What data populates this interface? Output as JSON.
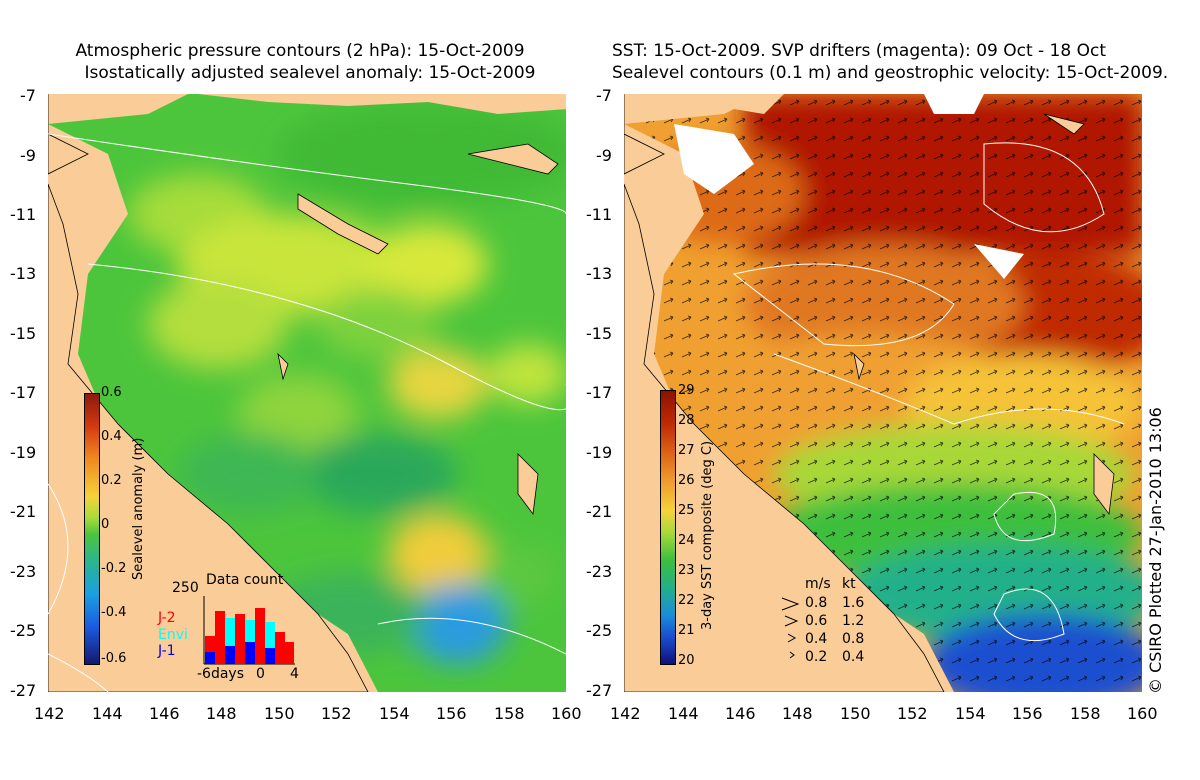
{
  "left_panel": {
    "title_line1": "Atmospheric pressure contours (2 hPa): 15-Oct-2009",
    "title_line2": "Isostatically adjusted sealevel anomaly: 15-Oct-2009",
    "colorbar_label": "Sealevel anomaly (m)",
    "colorbar_ticks": [
      "0.6",
      "0.4",
      "0.2",
      "0",
      "-0.2",
      "-0.4",
      "-0.6"
    ],
    "data_count": {
      "title": "Data count",
      "ymax_label": "250",
      "xlabels": [
        "-6days",
        "0",
        "4"
      ],
      "series": [
        {
          "name": "J-2",
          "color": "#ff0000"
        },
        {
          "name": "Envi",
          "color": "#00ffff"
        },
        {
          "name": "J-1",
          "color": "#0000ff"
        }
      ]
    }
  },
  "right_panel": {
    "title_line1": "SST: 15-Oct-2009. SVP drifters (magenta): 09 Oct - 18 Oct",
    "title_line2": "Sealevel contours (0.1 m) and geostrophic velocity: 15-Oct-2009.",
    "colorbar_label": "3-day SST composite (deg C)",
    "colorbar_ticks": [
      "29",
      "28",
      "27",
      "26",
      "25",
      "24",
      "23",
      "22",
      "21",
      "20"
    ],
    "velocity_legend": {
      "header_ms": "m/s",
      "header_kt": "kt",
      "rows": [
        {
          "ms": "0.8",
          "kt": "1.6"
        },
        {
          "ms": "0.6",
          "kt": "1.2"
        },
        {
          "ms": "0.4",
          "kt": "0.8"
        },
        {
          "ms": "0.2",
          "kt": "0.4"
        }
      ]
    }
  },
  "axes": {
    "lat_ticks": [
      "-7",
      "-9",
      "-11",
      "-13",
      "-15",
      "-17",
      "-19",
      "-21",
      "-23",
      "-25",
      "-27"
    ],
    "lon_ticks": [
      "142",
      "144",
      "146",
      "148",
      "150",
      "152",
      "154",
      "156",
      "158",
      "160"
    ]
  },
  "credit": "© CSIRO Plotted 27-Jan-2010 13:06",
  "colors": {
    "land": "#f9cc98",
    "sla_base": "#4cc53c",
    "sst_warm": "#b01800",
    "sst_cool": "#1a4fd0"
  }
}
